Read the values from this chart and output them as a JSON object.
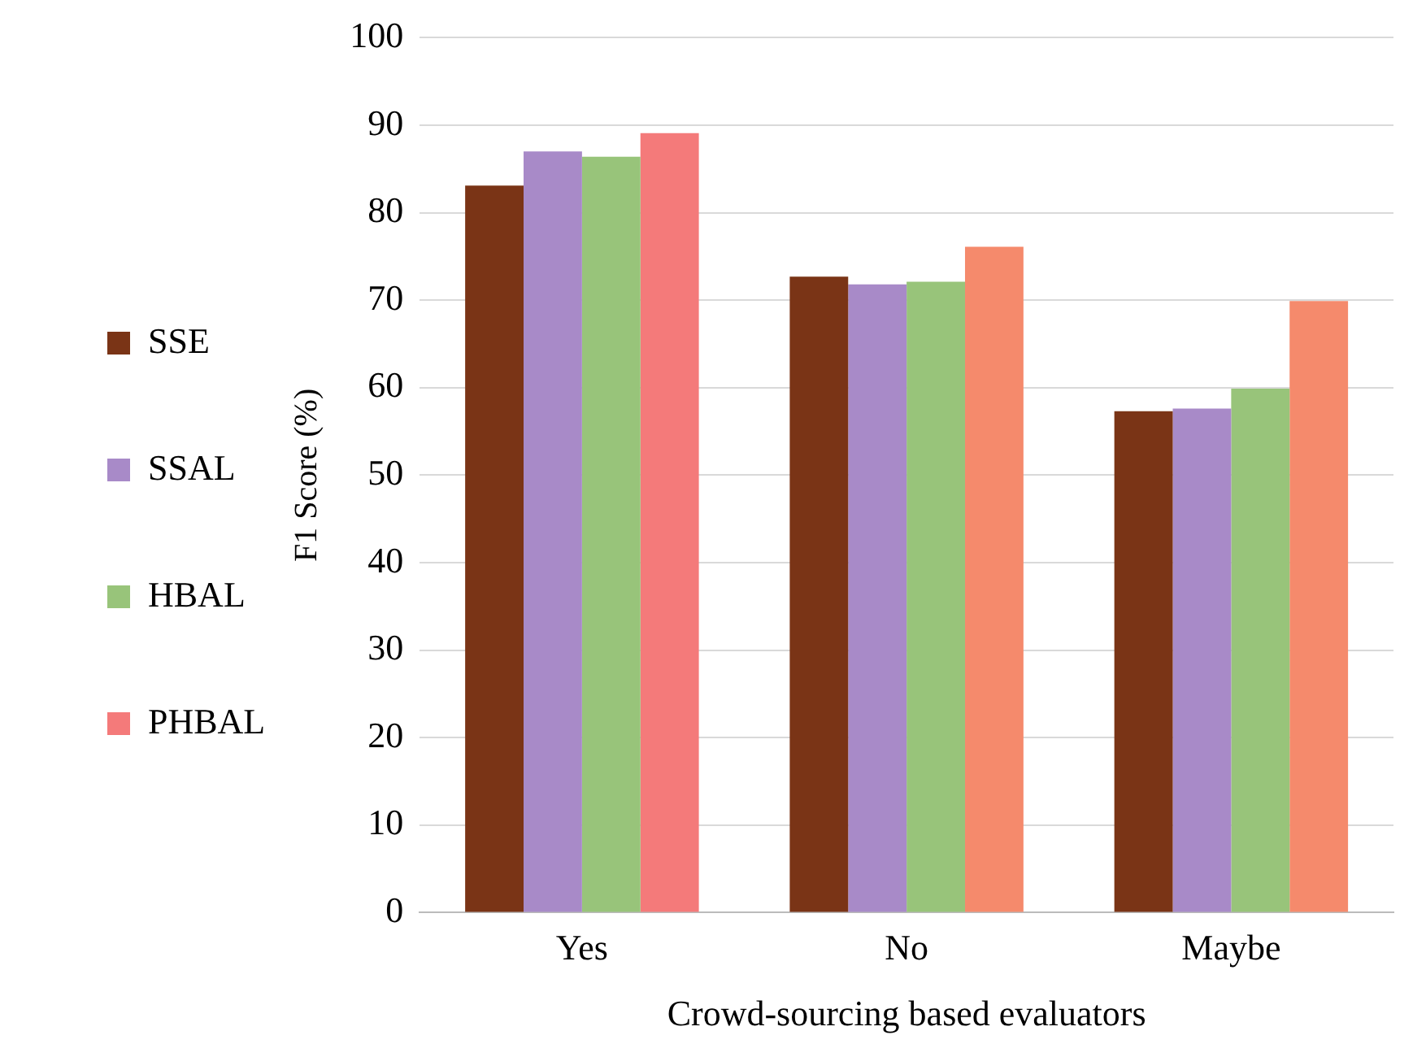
{
  "chart_data": {
    "type": "bar",
    "xlabel": "Crowd-sourcing based evaluators",
    "ylabel": "F1 Score (%)",
    "categories": [
      "Yes",
      "No",
      "Maybe"
    ],
    "series": [
      {
        "name": "SSE",
        "color": "#7a3416",
        "values": [
          83.1,
          72.7,
          57.3
        ]
      },
      {
        "name": "SSAL",
        "color": "#a88ac8",
        "values": [
          87.0,
          71.8,
          57.6
        ]
      },
      {
        "name": "HBAL",
        "color": "#98c47a",
        "values": [
          86.4,
          72.1,
          59.9
        ]
      },
      {
        "name": "PHBAL",
        "color": "#f3847a",
        "colors": [
          "#f47a7a",
          "#f58a6c",
          "#f58a6c"
        ],
        "values": [
          89.1,
          76.1,
          69.9
        ]
      }
    ],
    "ylim": [
      0,
      100
    ],
    "yticks": [
      0,
      10,
      20,
      30,
      40,
      50,
      60,
      70,
      80,
      90,
      100
    ],
    "grid": "y",
    "legend": "left"
  }
}
